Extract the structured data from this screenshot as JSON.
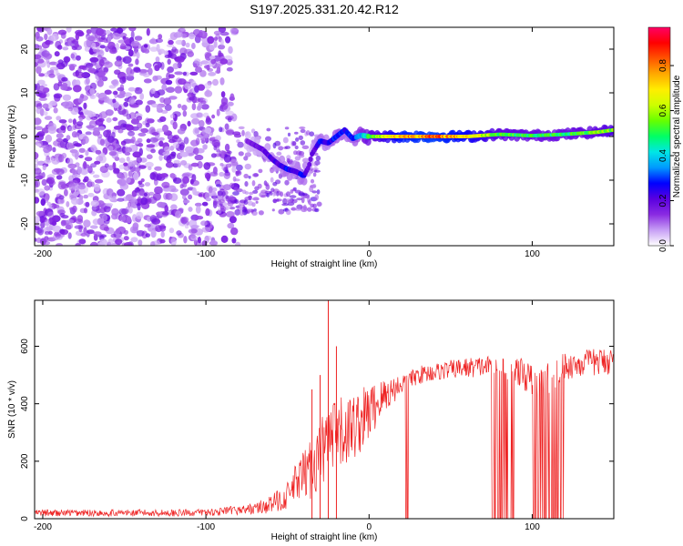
{
  "title": "S197.2025.331.20.42.R12",
  "chart_data": [
    {
      "type": "heatmap",
      "name": "spectrogram",
      "xlabel": "Height of straight line (km)",
      "ylabel": "Frequency (Hz)",
      "xlim": [
        -205,
        150
      ],
      "ylim": [
        -25,
        25
      ],
      "xticks": [
        -200,
        -100,
        0,
        100
      ],
      "xtick_labels": [
        "-200",
        "-100",
        "0",
        "100"
      ],
      "yticks": [
        -20,
        -10,
        0,
        10,
        20
      ],
      "ytick_labels": [
        "-20",
        "-10",
        "0",
        "10",
        "20"
      ],
      "colorbar": {
        "label": "Normalized spectral amplitude",
        "range": [
          0,
          0.97
        ],
        "ticks": [
          0.0,
          0.2,
          0.4,
          0.6,
          0.8
        ],
        "tick_labels": [
          "0.0",
          "0.2",
          "0.4",
          "0.6",
          "0.8"
        ],
        "colors": [
          "#ffffff",
          "#c79ff5",
          "#8a2be2",
          "#5a00e0",
          "#0000ff",
          "#0099ff",
          "#00e6e6",
          "#00ff66",
          "#66ff00",
          "#ccff00",
          "#ffee00",
          "#ffaa00",
          "#ff5500",
          "#ff0000",
          "#ff0066"
        ]
      },
      "ridge": {
        "x": [
          -75,
          -70,
          -65,
          -60,
          -55,
          -50,
          -45,
          -40,
          -37,
          -35,
          -30,
          -25,
          -20,
          -15,
          -10,
          -5,
          0,
          10,
          20,
          40,
          60,
          80,
          100,
          120,
          140,
          150
        ],
        "freq": [
          -1,
          -2,
          -3,
          -5,
          -6.5,
          -7.5,
          -8,
          -9,
          -7,
          -4,
          -1,
          -1.5,
          0,
          1.5,
          -0.5,
          0.3,
          0,
          0,
          0,
          0,
          0,
          0.5,
          0.2,
          0.5,
          1,
          1.5
        ],
        "amplitude": [
          0.15,
          0.2,
          0.2,
          0.25,
          0.25,
          0.3,
          0.25,
          0.3,
          0.2,
          0.2,
          0.3,
          0.25,
          0.35,
          0.3,
          0.3,
          0.4,
          0.55,
          0.7,
          0.85,
          0.9,
          0.8,
          0.6,
          0.55,
          0.55,
          0.6,
          0.65
        ]
      }
    },
    {
      "type": "line",
      "name": "snr",
      "xlabel": "Height of straight line (km)",
      "ylabel": "SNR (10 * v/v)",
      "xlim": [
        -205,
        150
      ],
      "ylim": [
        0,
        760
      ],
      "xticks": [
        -200,
        -100,
        0,
        100
      ],
      "xtick_labels": [
        "-200",
        "-100",
        "0",
        "100"
      ],
      "yticks": [
        0,
        200,
        400,
        600
      ],
      "ytick_labels": [
        "0",
        "200",
        "400",
        "600"
      ],
      "series": [
        {
          "name": "SNR",
          "color": "#ee2222",
          "x": [
            -205,
            -180,
            -150,
            -120,
            -100,
            -90,
            -80,
            -70,
            -60,
            -50,
            -45,
            -40,
            -35,
            -30,
            -25,
            -20,
            -15,
            -10,
            -5,
            0,
            5,
            10,
            15,
            20,
            25,
            30,
            40,
            50,
            60,
            70,
            80,
            90,
            100,
            110,
            120,
            130,
            140,
            150
          ],
          "y": [
            20,
            20,
            20,
            20,
            22,
            25,
            30,
            35,
            50,
            80,
            120,
            150,
            180,
            230,
            260,
            280,
            300,
            320,
            340,
            370,
            400,
            430,
            450,
            470,
            480,
            500,
            510,
            520,
            525,
            530,
            530,
            520,
            480,
            490,
            530,
            540,
            545,
            550
          ],
          "noise": [
            15,
            15,
            15,
            15,
            15,
            18,
            20,
            25,
            40,
            60,
            90,
            110,
            140,
            160,
            170,
            170,
            160,
            150,
            140,
            130,
            100,
            80,
            60,
            50,
            40,
            40,
            40,
            40,
            45,
            45,
            50,
            60,
            70,
            70,
            60,
            60,
            60,
            60
          ],
          "peaks": [
            [
              -25,
              760
            ],
            [
              -20,
              600
            ],
            [
              -30,
              500
            ],
            [
              -35,
              450
            ]
          ],
          "dropouts": [
            [
              22,
              25
            ],
            [
              75,
              90
            ],
            [
              100,
              120
            ],
            [
              147,
              148
            ]
          ]
        }
      ]
    }
  ]
}
